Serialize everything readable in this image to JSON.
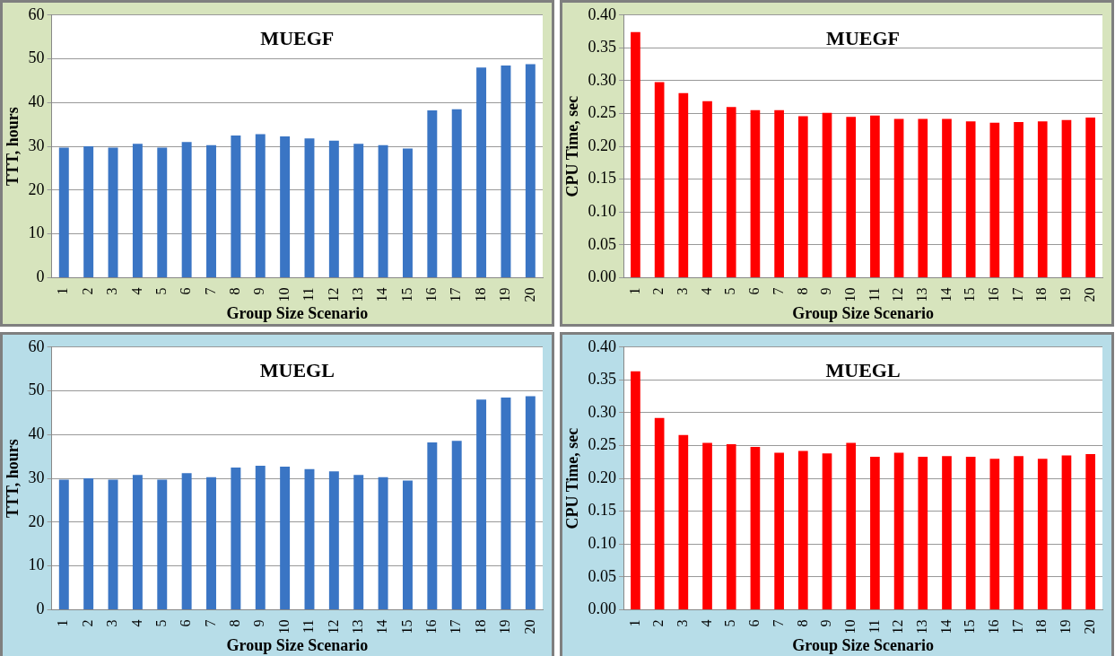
{
  "chart_data": [
    {
      "type": "bar",
      "title": "MUEGF",
      "xlabel": "Group Size Scenario",
      "ylabel": "TTT, hours",
      "categories": [
        "1",
        "2",
        "3",
        "4",
        "5",
        "6",
        "7",
        "8",
        "9",
        "10",
        "11",
        "12",
        "13",
        "14",
        "15",
        "16",
        "17",
        "18",
        "19",
        "20"
      ],
      "series": [
        {
          "color": "#3a75c4",
          "values": [
            29.7,
            30,
            29.7,
            30.6,
            29.7,
            31,
            30.3,
            32.5,
            32.8,
            32.3,
            31.8,
            31.3,
            30.6,
            30.3,
            29.5,
            38.2,
            38.5,
            48,
            48.5,
            48.8
          ]
        }
      ],
      "ylim": [
        0,
        60
      ],
      "yticks": [
        0,
        10,
        20,
        30,
        40,
        50,
        60
      ],
      "grid": "y",
      "legend": false
    },
    {
      "type": "bar",
      "title": "MUEGF",
      "xlabel": "Group Size Scenario",
      "ylabel": "CPU Time, sec",
      "categories": [
        "1",
        "2",
        "3",
        "4",
        "5",
        "6",
        "7",
        "8",
        "9",
        "10",
        "11",
        "12",
        "13",
        "14",
        "15",
        "16",
        "17",
        "18",
        "19",
        "20"
      ],
      "series": [
        {
          "color": "#ff0000",
          "values": [
            0.374,
            0.298,
            0.281,
            0.269,
            0.26,
            0.255,
            0.255,
            0.246,
            0.251,
            0.245,
            0.247,
            0.242,
            0.242,
            0.242,
            0.238,
            0.236,
            0.237,
            0.238,
            0.24,
            0.244
          ]
        }
      ],
      "ylim": [
        0,
        0.4
      ],
      "yticks": [
        {
          "value": 0,
          "label": "0.00"
        },
        {
          "value": 0.05,
          "label": "0.05"
        },
        {
          "value": 0.1,
          "label": "0.10"
        },
        {
          "value": 0.15,
          "label": "0.15"
        },
        {
          "value": 0.2,
          "label": "0.20"
        },
        {
          "value": 0.25,
          "label": "0.25"
        },
        {
          "value": 0.3,
          "label": "0.30"
        },
        {
          "value": 0.35,
          "label": "0.35"
        },
        {
          "value": 0.4,
          "label": "0.40"
        }
      ],
      "grid": "y",
      "legend": false
    },
    {
      "type": "bar",
      "title": "MUEGL",
      "xlabel": "Group Size Scenario",
      "ylabel": "TTT, hours",
      "categories": [
        "1",
        "2",
        "3",
        "4",
        "5",
        "6",
        "7",
        "8",
        "9",
        "10",
        "11",
        "12",
        "13",
        "14",
        "15",
        "16",
        "17",
        "18",
        "19",
        "20"
      ],
      "series": [
        {
          "color": "#3a75c4",
          "values": [
            29.7,
            30,
            29.7,
            30.8,
            29.7,
            31.2,
            30.3,
            32.5,
            32.9,
            32.7,
            32.1,
            31.6,
            30.8,
            30.3,
            29.5,
            38.2,
            38.6,
            48,
            48.5,
            48.8
          ]
        }
      ],
      "ylim": [
        0,
        60
      ],
      "yticks": [
        0,
        10,
        20,
        30,
        40,
        50,
        60
      ],
      "grid": "y",
      "legend": false
    },
    {
      "type": "bar",
      "title": "MUEGL",
      "xlabel": "Group Size Scenario",
      "ylabel": "CPU Time, sec",
      "categories": [
        "1",
        "2",
        "3",
        "4",
        "5",
        "6",
        "7",
        "8",
        "9",
        "10",
        "11",
        "12",
        "13",
        "14",
        "15",
        "16",
        "17",
        "18",
        "19",
        "20"
      ],
      "series": [
        {
          "color": "#ff0000",
          "values": [
            0.363,
            0.292,
            0.266,
            0.254,
            0.252,
            0.248,
            0.239,
            0.242,
            0.238,
            0.254,
            0.233,
            0.239,
            0.233,
            0.234,
            0.233,
            0.23,
            0.234,
            0.23,
            0.235,
            0.237
          ]
        }
      ],
      "ylim": [
        0,
        0.4
      ],
      "yticks": [
        {
          "value": 0,
          "label": "0.00"
        },
        {
          "value": 0.05,
          "label": "0.05"
        },
        {
          "value": 0.1,
          "label": "0.10"
        },
        {
          "value": 0.15,
          "label": "0.15"
        },
        {
          "value": 0.2,
          "label": "0.20"
        },
        {
          "value": 0.25,
          "label": "0.25"
        },
        {
          "value": 0.3,
          "label": "0.30"
        },
        {
          "value": 0.35,
          "label": "0.35"
        },
        {
          "value": 0.4,
          "label": "0.40"
        }
      ],
      "grid": "y",
      "legend": false
    }
  ]
}
